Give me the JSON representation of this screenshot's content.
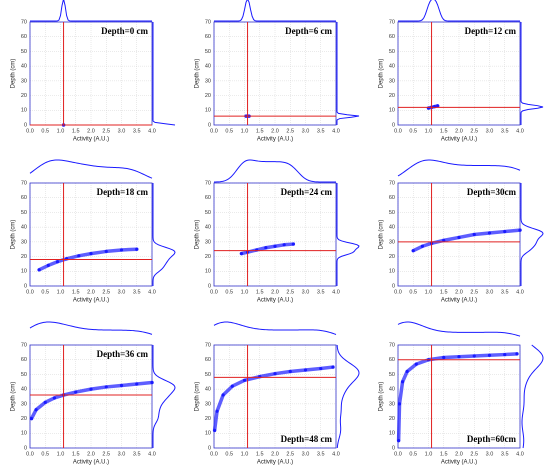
{
  "chart_data": [
    {
      "type": "scatter",
      "title": "Depth=0 cm",
      "title_corner": "upper right",
      "xlabel": "Activity (A.U.)",
      "ylabel": "Depth (cm)",
      "color": "#1a1aff",
      "line_color": "#e02020",
      "vline": 1.1,
      "hline": 0,
      "grid": true,
      "xlim": [
        0,
        4
      ],
      "ylim": [
        0,
        70
      ],
      "xticks": [
        {
          "value": 0,
          "label": "0.0"
        },
        {
          "value": 0.5,
          "label": "0.5"
        },
        {
          "value": 1,
          "label": "1.0"
        },
        {
          "value": 1.5,
          "label": "1.5"
        },
        {
          "value": 2,
          "label": "2.0"
        },
        {
          "value": 2.5,
          "label": "2.5"
        },
        {
          "value": 3,
          "label": "3.0"
        },
        {
          "value": 3.5,
          "label": "3.5"
        },
        {
          "value": 4,
          "label": "4.0"
        }
      ],
      "yticks": [
        0,
        10,
        20,
        30,
        40,
        50,
        60,
        70
      ],
      "x": [
        1.1
      ],
      "values": [
        0
      ]
    },
    {
      "type": "scatter",
      "title": "Depth=6 cm",
      "title_corner": "upper right",
      "xlabel": "Activity (A.U.)",
      "ylabel": "Depth (cm)",
      "color": "#1a1aff",
      "line_color": "#e02020",
      "vline": 1.1,
      "hline": 6,
      "grid": true,
      "xlim": [
        0,
        4
      ],
      "ylim": [
        0,
        70
      ],
      "xticks": [
        {
          "value": 0,
          "label": "0.0"
        },
        {
          "value": 0.5,
          "label": "0.5"
        },
        {
          "value": 1,
          "label": "1.0"
        },
        {
          "value": 1.5,
          "label": "1.5"
        },
        {
          "value": 2,
          "label": "2.0"
        },
        {
          "value": 2.5,
          "label": "2.5"
        },
        {
          "value": 3,
          "label": "3.0"
        },
        {
          "value": 3.5,
          "label": "3.5"
        },
        {
          "value": 4,
          "label": "4.0"
        }
      ],
      "yticks": [
        0,
        10,
        20,
        30,
        40,
        50,
        60,
        70
      ],
      "x": [
        1.05,
        1.1,
        1.15
      ],
      "values": [
        6,
        6,
        6
      ]
    },
    {
      "type": "scatter",
      "title": "Depth=12 cm",
      "title_corner": "upper right",
      "xlabel": "Activity (A.U.)",
      "ylabel": "Depth (cm)",
      "color": "#1a1aff",
      "line_color": "#e02020",
      "vline": 1.1,
      "hline": 12,
      "grid": true,
      "xlim": [
        0,
        4
      ],
      "ylim": [
        0,
        70
      ],
      "xticks": [
        {
          "value": 0,
          "label": "0.0"
        },
        {
          "value": 0.5,
          "label": "0.5"
        },
        {
          "value": 1,
          "label": "1.0"
        },
        {
          "value": 1.5,
          "label": "1.5"
        },
        {
          "value": 2,
          "label": "2.0"
        },
        {
          "value": 2.5,
          "label": "2.5"
        },
        {
          "value": 3,
          "label": "3.0"
        },
        {
          "value": 3.5,
          "label": "3.5"
        },
        {
          "value": 4,
          "label": "4.0"
        }
      ],
      "yticks": [
        0,
        10,
        20,
        30,
        40,
        50,
        60,
        70
      ],
      "x": [
        1.0,
        1.1,
        1.2,
        1.3
      ],
      "values": [
        11.5,
        12,
        12.5,
        13
      ]
    },
    {
      "type": "scatter",
      "title": "Depth=18 cm",
      "title_corner": "upper right",
      "xlabel": "Activity (A.U.)",
      "ylabel": "Depth (cm)",
      "color": "#1a1aff",
      "line_color": "#e02020",
      "vline": 1.1,
      "hline": 18,
      "grid": true,
      "xlim": [
        0,
        4
      ],
      "ylim": [
        0,
        70
      ],
      "xticks": [
        {
          "value": 0,
          "label": "0.0"
        },
        {
          "value": 0.5,
          "label": "0.5"
        },
        {
          "value": 1,
          "label": "1.0"
        },
        {
          "value": 1.5,
          "label": "1.5"
        },
        {
          "value": 2,
          "label": "2.0"
        },
        {
          "value": 2.5,
          "label": "2.5"
        },
        {
          "value": 3,
          "label": "3.0"
        },
        {
          "value": 3.5,
          "label": "3.5"
        },
        {
          "value": 4,
          "label": "4.0"
        }
      ],
      "yticks": [
        0,
        10,
        20,
        30,
        40,
        50,
        60,
        70
      ],
      "x": [
        0.3,
        0.6,
        0.9,
        1.2,
        1.6,
        2.0,
        2.5,
        3.0,
        3.5
      ],
      "values": [
        11,
        14,
        16.5,
        18.5,
        20.5,
        22,
        23.5,
        24.5,
        25
      ]
    },
    {
      "type": "scatter",
      "title": "Depth=24 cm",
      "title_corner": "upper right",
      "xlabel": "Activity (A.U.)",
      "ylabel": "Depth (cm)",
      "color": "#1a1aff",
      "line_color": "#e02020",
      "vline": 1.1,
      "hline": 24,
      "grid": true,
      "xlim": [
        0,
        4
      ],
      "ylim": [
        0,
        70
      ],
      "xticks": [
        {
          "value": 0,
          "label": "0.0"
        },
        {
          "value": 0.5,
          "label": "0.5"
        },
        {
          "value": 1,
          "label": "1.0"
        },
        {
          "value": 1.5,
          "label": "1.5"
        },
        {
          "value": 2,
          "label": "2.0"
        },
        {
          "value": 2.5,
          "label": "2.5"
        },
        {
          "value": 3,
          "label": "3.0"
        },
        {
          "value": 3.5,
          "label": "3.5"
        },
        {
          "value": 4,
          "label": "4.0"
        }
      ],
      "yticks": [
        0,
        10,
        20,
        30,
        40,
        50,
        60,
        70
      ],
      "x": [
        0.9,
        1.1,
        1.4,
        1.7,
        2.0,
        2.3,
        2.6
      ],
      "values": [
        22,
        23,
        24.5,
        26,
        27,
        28,
        28.5
      ]
    },
    {
      "type": "scatter",
      "title": "Depth=30cm",
      "title_corner": "upper right",
      "xlabel": "Activity (A.U.)",
      "ylabel": "Depth (cm)",
      "color": "#1a1aff",
      "line_color": "#e02020",
      "vline": 1.1,
      "hline": 30,
      "grid": true,
      "xlim": [
        0,
        4
      ],
      "ylim": [
        0,
        70
      ],
      "xticks": [
        {
          "value": 0,
          "label": "0.0"
        },
        {
          "value": 0.5,
          "label": "0.5"
        },
        {
          "value": 1,
          "label": "1.0"
        },
        {
          "value": 1.5,
          "label": "1.5"
        },
        {
          "value": 2,
          "label": "2.0"
        },
        {
          "value": 2.5,
          "label": "2.5"
        },
        {
          "value": 3,
          "label": "3.0"
        },
        {
          "value": 3.5,
          "label": "3.5"
        },
        {
          "value": 4,
          "label": "4.0"
        }
      ],
      "yticks": [
        0,
        10,
        20,
        30,
        40,
        50,
        60,
        70
      ],
      "x": [
        0.5,
        0.8,
        1.1,
        1.5,
        2.0,
        2.5,
        3.0,
        3.5,
        4.0
      ],
      "values": [
        24,
        27,
        29,
        31,
        33,
        35,
        36,
        37,
        38
      ]
    },
    {
      "type": "scatter",
      "title": "Depth=36 cm",
      "title_corner": "upper right",
      "xlabel": "Activity (A.U.)",
      "ylabel": "Depth (cm)",
      "color": "#1a1aff",
      "line_color": "#e02020",
      "vline": 1.1,
      "hline": 36,
      "grid": true,
      "xlim": [
        0,
        4
      ],
      "ylim": [
        0,
        70
      ],
      "xticks": [
        {
          "value": 0,
          "label": "0.0"
        },
        {
          "value": 0.5,
          "label": "0.5"
        },
        {
          "value": 1,
          "label": "1.0"
        },
        {
          "value": 1.5,
          "label": "1.5"
        },
        {
          "value": 2,
          "label": "2.0"
        },
        {
          "value": 2.5,
          "label": "2.5"
        },
        {
          "value": 3,
          "label": "3.0"
        },
        {
          "value": 3.5,
          "label": "3.5"
        },
        {
          "value": 4,
          "label": "4.0"
        }
      ],
      "yticks": [
        0,
        10,
        20,
        30,
        40,
        50,
        60,
        70
      ],
      "x": [
        0.05,
        0.2,
        0.5,
        0.8,
        1.1,
        1.5,
        2.0,
        2.5,
        3.0,
        3.5,
        4.0
      ],
      "values": [
        20,
        26,
        31,
        34,
        36,
        38,
        40,
        41.5,
        42.5,
        43.5,
        44.5
      ]
    },
    {
      "type": "scatter",
      "title": "Depth=48 cm",
      "title_corner": "lower right",
      "xlabel": "Activity (A.U.)",
      "ylabel": "Depth (cm)",
      "color": "#1a1aff",
      "line_color": "#e02020",
      "vline": 1.1,
      "hline": 48,
      "grid": true,
      "xlim": [
        0,
        4
      ],
      "ylim": [
        0,
        70
      ],
      "xticks": [
        {
          "value": 0,
          "label": "0.0"
        },
        {
          "value": 0.5,
          "label": "0.5"
        },
        {
          "value": 1,
          "label": "1.0"
        },
        {
          "value": 1.5,
          "label": "1.5"
        },
        {
          "value": 2,
          "label": "2.0"
        },
        {
          "value": 2.5,
          "label": "2.5"
        },
        {
          "value": 3,
          "label": "3.0"
        },
        {
          "value": 3.5,
          "label": "3.5"
        },
        {
          "value": 4,
          "label": "4.0"
        }
      ],
      "yticks": [
        0,
        10,
        20,
        30,
        40,
        50,
        60,
        70
      ],
      "x": [
        0.02,
        0.1,
        0.3,
        0.6,
        1.0,
        1.5,
        2.0,
        2.5,
        3.0,
        3.5,
        3.9
      ],
      "values": [
        12,
        25,
        36,
        42,
        46,
        48.5,
        50.5,
        52,
        53,
        54,
        55
      ]
    },
    {
      "type": "scatter",
      "title": "Depth=60cm",
      "title_corner": "lower right",
      "xlabel": "Activity (A.U.)",
      "ylabel": "Depth (cm)",
      "color": "#1a1aff",
      "line_color": "#e02020",
      "vline": 1.1,
      "hline": 60,
      "grid": true,
      "xlim": [
        0,
        4
      ],
      "ylim": [
        0,
        70
      ],
      "xticks": [
        {
          "value": 0,
          "label": "0.0"
        },
        {
          "value": 0.5,
          "label": "0.5"
        },
        {
          "value": 1,
          "label": "1.0"
        },
        {
          "value": 1.5,
          "label": "1.5"
        },
        {
          "value": 2,
          "label": "2.0"
        },
        {
          "value": 2.5,
          "label": "2.5"
        },
        {
          "value": 3,
          "label": "3.0"
        },
        {
          "value": 3.5,
          "label": "3.5"
        },
        {
          "value": 4,
          "label": "4.0"
        }
      ],
      "yticks": [
        0,
        10,
        20,
        30,
        40,
        50,
        60,
        70
      ],
      "x": [
        0.02,
        0.05,
        0.15,
        0.3,
        0.6,
        1.0,
        1.5,
        2.0,
        2.5,
        3.0,
        3.5,
        3.9
      ],
      "values": [
        5,
        30,
        45,
        52,
        57,
        60,
        61.5,
        62,
        62.5,
        63,
        63.5,
        64
      ]
    }
  ]
}
